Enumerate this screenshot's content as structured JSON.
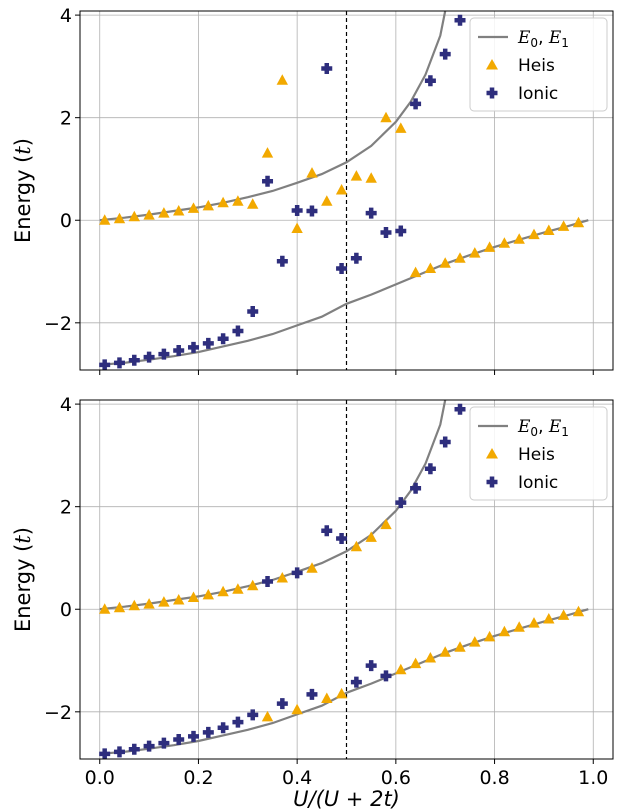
{
  "chart_data": [
    {
      "type": "scatter",
      "title": "",
      "xlabel": "",
      "ylabel": "Energy (t)",
      "xlim": [
        -0.04,
        1.04
      ],
      "ylim": [
        -2.92,
        4.08
      ],
      "x_ticks": [
        0.0,
        0.2,
        0.4,
        0.6,
        0.8,
        1.0
      ],
      "y_ticks": [
        -2,
        0,
        2,
        4
      ],
      "grid": true,
      "legend_position": "top-right",
      "vline_x": 0.5,
      "series": [
        {
          "name": "E0, E1",
          "kind": "line",
          "color": "#808080",
          "curves": [
            {
              "x": [
                0.0,
                0.05,
                0.1,
                0.15,
                0.2,
                0.25,
                0.3,
                0.35,
                0.4,
                0.45,
                0.5,
                0.55,
                0.6,
                0.63,
                0.66,
                0.69,
                0.7
              ],
              "y": [
                0.0,
                0.05,
                0.11,
                0.18,
                0.25,
                0.34,
                0.45,
                0.57,
                0.73,
                0.9,
                1.13,
                1.45,
                1.92,
                2.31,
                2.84,
                3.6,
                4.08
              ]
            },
            {
              "x": [
                0.0,
                0.05,
                0.1,
                0.15,
                0.2,
                0.25,
                0.3,
                0.35,
                0.4,
                0.45,
                0.5,
                0.55,
                0.6,
                0.65,
                0.7,
                0.75,
                0.8,
                0.85,
                0.9,
                0.95,
                0.99
              ],
              "y": [
                -2.82,
                -2.78,
                -2.72,
                -2.65,
                -2.57,
                -2.46,
                -2.35,
                -2.22,
                -2.05,
                -1.88,
                -1.63,
                -1.45,
                -1.25,
                -1.05,
                -0.85,
                -0.68,
                -0.52,
                -0.38,
                -0.24,
                -0.11,
                0.0
              ]
            }
          ]
        },
        {
          "name": "Heis",
          "kind": "triangle",
          "color": "#f2a900",
          "x": [
            0.01,
            0.04,
            0.07,
            0.1,
            0.13,
            0.16,
            0.19,
            0.22,
            0.25,
            0.28,
            0.31,
            0.34,
            0.37,
            0.4,
            0.43,
            0.46,
            0.49,
            0.52,
            0.55,
            0.58,
            0.61,
            0.64,
            0.67,
            0.7,
            0.73,
            0.76,
            0.79,
            0.82,
            0.85,
            0.88,
            0.91,
            0.94,
            0.97
          ],
          "y": [
            0.0,
            0.03,
            0.07,
            0.1,
            0.14,
            0.18,
            0.23,
            0.28,
            0.34,
            0.37,
            0.31,
            1.31,
            2.73,
            -0.16,
            0.92,
            0.37,
            0.59,
            0.86,
            0.82,
            2.0,
            1.79,
            -1.02,
            -0.94,
            -0.84,
            -0.74,
            -0.64,
            -0.53,
            -0.45,
            -0.37,
            -0.28,
            -0.2,
            -0.12,
            -0.05
          ]
        },
        {
          "name": "Ionic",
          "kind": "plus",
          "color": "#2e2e7d",
          "x": [
            0.01,
            0.04,
            0.07,
            0.1,
            0.13,
            0.16,
            0.19,
            0.22,
            0.25,
            0.28,
            0.31,
            0.34,
            0.37,
            0.4,
            0.43,
            0.46,
            0.49,
            0.52,
            0.55,
            0.58,
            0.61,
            0.64,
            0.67,
            0.7,
            0.73
          ],
          "y": [
            -2.82,
            -2.78,
            -2.73,
            -2.67,
            -2.61,
            -2.54,
            -2.48,
            -2.4,
            -2.31,
            -2.16,
            -1.78,
            0.76,
            -0.8,
            0.19,
            0.18,
            2.96,
            -0.94,
            -0.74,
            0.14,
            -0.24,
            -0.21,
            2.27,
            2.72,
            3.24,
            3.9
          ]
        }
      ]
    },
    {
      "type": "scatter",
      "title": "",
      "xlabel": "U/(U + 2t)",
      "ylabel": "Energy (t)",
      "xlim": [
        -0.04,
        1.04
      ],
      "ylim": [
        -2.92,
        4.08
      ],
      "x_ticks": [
        0.0,
        0.2,
        0.4,
        0.6,
        0.8,
        1.0
      ],
      "y_ticks": [
        -2,
        0,
        2,
        4
      ],
      "grid": true,
      "legend_position": "top-right",
      "vline_x": 0.5,
      "series": [
        {
          "name": "E0, E1",
          "kind": "line",
          "color": "#808080",
          "curves": [
            {
              "x": [
                0.0,
                0.05,
                0.1,
                0.15,
                0.2,
                0.25,
                0.3,
                0.35,
                0.4,
                0.45,
                0.5,
                0.55,
                0.6,
                0.63,
                0.66,
                0.69,
                0.7
              ],
              "y": [
                0.0,
                0.05,
                0.11,
                0.18,
                0.25,
                0.34,
                0.45,
                0.57,
                0.73,
                0.9,
                1.13,
                1.45,
                1.92,
                2.31,
                2.84,
                3.6,
                4.08
              ]
            },
            {
              "x": [
                0.0,
                0.05,
                0.1,
                0.15,
                0.2,
                0.25,
                0.3,
                0.35,
                0.4,
                0.45,
                0.5,
                0.55,
                0.6,
                0.65,
                0.7,
                0.75,
                0.8,
                0.85,
                0.9,
                0.95,
                0.99
              ],
              "y": [
                -2.82,
                -2.78,
                -2.72,
                -2.65,
                -2.57,
                -2.46,
                -2.35,
                -2.22,
                -2.05,
                -1.88,
                -1.63,
                -1.45,
                -1.25,
                -1.05,
                -0.85,
                -0.68,
                -0.52,
                -0.38,
                -0.24,
                -0.11,
                0.0
              ]
            }
          ]
        },
        {
          "name": "Heis",
          "kind": "triangle",
          "color": "#f2a900",
          "x": [
            0.01,
            0.04,
            0.07,
            0.1,
            0.13,
            0.16,
            0.19,
            0.22,
            0.25,
            0.28,
            0.31,
            0.34,
            0.37,
            0.4,
            0.43,
            0.46,
            0.49,
            0.52,
            0.55,
            0.58,
            0.61,
            0.64,
            0.67,
            0.7,
            0.73,
            0.76,
            0.79,
            0.82,
            0.85,
            0.88,
            0.91,
            0.94,
            0.97
          ],
          "y": [
            0.0,
            0.03,
            0.07,
            0.1,
            0.14,
            0.18,
            0.23,
            0.28,
            0.34,
            0.39,
            0.46,
            -2.1,
            0.61,
            -1.96,
            0.8,
            -1.74,
            -1.65,
            1.22,
            1.4,
            1.65,
            -1.18,
            -1.06,
            -0.95,
            -0.84,
            -0.74,
            -0.64,
            -0.54,
            -0.44,
            -0.35,
            -0.27,
            -0.19,
            -0.12,
            -0.05
          ]
        },
        {
          "name": "Ionic",
          "kind": "plus",
          "color": "#2e2e7d",
          "x": [
            0.01,
            0.04,
            0.07,
            0.1,
            0.13,
            0.16,
            0.19,
            0.22,
            0.25,
            0.28,
            0.31,
            0.34,
            0.37,
            0.4,
            0.43,
            0.46,
            0.49,
            0.52,
            0.55,
            0.58,
            0.61,
            0.64,
            0.67,
            0.7,
            0.73
          ],
          "y": [
            -2.82,
            -2.78,
            -2.73,
            -2.67,
            -2.61,
            -2.54,
            -2.48,
            -2.4,
            -2.31,
            -2.2,
            -2.06,
            0.54,
            -1.84,
            0.71,
            -1.66,
            1.53,
            1.38,
            -1.42,
            -1.1,
            -1.3,
            2.08,
            2.36,
            2.74,
            3.26,
            3.9
          ]
        }
      ]
    }
  ]
}
